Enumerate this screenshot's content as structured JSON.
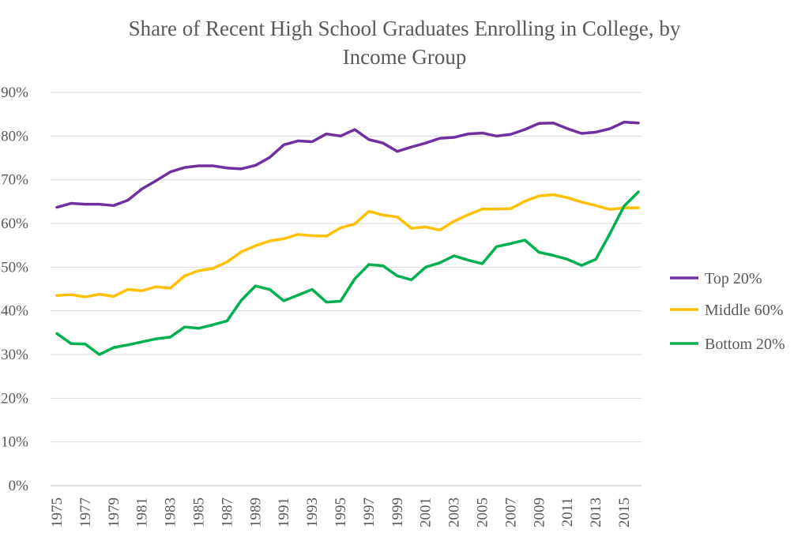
{
  "chart_data": {
    "type": "line",
    "title_line1": "Share of Recent High School Graduates Enrolling in College, by",
    "title_line2": "Income Group",
    "xlabel": "",
    "ylabel": "",
    "ylim": [
      0,
      90
    ],
    "y_ticks": [
      "0%",
      "10%",
      "20%",
      "30%",
      "40%",
      "50%",
      "60%",
      "70%",
      "80%",
      "90%"
    ],
    "x_tick_labels": [
      "1975",
      "1977",
      "1979",
      "1981",
      "1983",
      "1985",
      "1987",
      "1989",
      "1991",
      "1993",
      "1995",
      "1997",
      "1999",
      "2001",
      "2003",
      "2005",
      "2007",
      "2009",
      "2011",
      "2013",
      "2015"
    ],
    "x": [
      1975,
      1976,
      1977,
      1978,
      1979,
      1980,
      1981,
      1982,
      1983,
      1984,
      1985,
      1986,
      1987,
      1988,
      1989,
      1990,
      1991,
      1992,
      1993,
      1994,
      1995,
      1996,
      1997,
      1998,
      1999,
      2000,
      2001,
      2002,
      2003,
      2004,
      2005,
      2006,
      2007,
      2008,
      2009,
      2010,
      2011,
      2012,
      2013,
      2014,
      2015,
      2016
    ],
    "grid": true,
    "legend_position": "right",
    "series": [
      {
        "name": "Top 20%",
        "color": "#7030a0",
        "values": [
          63.7,
          64.6,
          64.4,
          64.4,
          64.1,
          65.3,
          67.9,
          69.8,
          71.8,
          72.8,
          73.2,
          73.2,
          72.7,
          72.5,
          73.3,
          75.1,
          78.0,
          78.9,
          78.7,
          80.5,
          80.0,
          81.5,
          79.2,
          78.4,
          76.5,
          77.5,
          78.4,
          79.5,
          79.7,
          80.5,
          80.7,
          80.0,
          80.4,
          81.5,
          82.9,
          83.0,
          81.7,
          80.6,
          80.9,
          81.7,
          83.2,
          83.0
        ]
      },
      {
        "name": "Middle 60%",
        "color": "#ffc000",
        "values": [
          43.5,
          43.7,
          43.2,
          43.8,
          43.3,
          44.9,
          44.6,
          45.5,
          45.2,
          48.0,
          49.2,
          49.7,
          51.2,
          53.5,
          54.9,
          56.0,
          56.5,
          57.5,
          57.2,
          57.1,
          59.0,
          59.9,
          62.8,
          61.9,
          61.5,
          58.9,
          59.2,
          58.5,
          60.5,
          62.0,
          63.3,
          63.3,
          63.4,
          65.1,
          66.3,
          66.6,
          65.9,
          64.9,
          64.1,
          63.2,
          63.6,
          63.6
        ]
      },
      {
        "name": "Bottom 20%",
        "color": "#00b050",
        "values": [
          34.8,
          32.5,
          32.4,
          30.0,
          31.6,
          32.2,
          32.9,
          33.6,
          34.0,
          36.3,
          36.0,
          36.8,
          37.7,
          42.4,
          45.7,
          44.9,
          42.3,
          43.6,
          44.9,
          42.0,
          42.2,
          47.3,
          50.6,
          50.3,
          48.0,
          47.1,
          50.0,
          51.0,
          52.6,
          51.6,
          50.8,
          54.7,
          55.4,
          56.2,
          53.4,
          52.7,
          51.8,
          50.4,
          51.8,
          57.7,
          64.0,
          67.2
        ]
      }
    ]
  }
}
